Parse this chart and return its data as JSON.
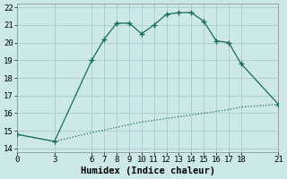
{
  "xlabel": "Humidex (Indice chaleur)",
  "bg_color": "#cce8e8",
  "line_color": "#1a6b5a",
  "upper_x": [
    0,
    3,
    6,
    7,
    8,
    9,
    10,
    11,
    12,
    13,
    14,
    15,
    16,
    17,
    18,
    21
  ],
  "upper_y": [
    14.8,
    14.4,
    19.0,
    20.2,
    21.1,
    21.1,
    20.5,
    21.0,
    21.6,
    21.7,
    21.7,
    21.2,
    20.1,
    20.0,
    18.8,
    16.5
  ],
  "lower_x": [
    0,
    3,
    6,
    7,
    8,
    9,
    10,
    11,
    12,
    13,
    14,
    15,
    16,
    17,
    18,
    21
  ],
  "lower_y": [
    14.8,
    14.4,
    14.9,
    15.05,
    15.2,
    15.35,
    15.5,
    15.6,
    15.7,
    15.8,
    15.9,
    16.0,
    16.1,
    16.2,
    16.35,
    16.5
  ],
  "xlim": [
    0,
    21
  ],
  "ylim": [
    13.8,
    22.2
  ],
  "xticks": [
    0,
    3,
    6,
    7,
    8,
    9,
    10,
    11,
    12,
    13,
    14,
    15,
    16,
    17,
    18,
    21
  ],
  "yticks": [
    14,
    15,
    16,
    17,
    18,
    19,
    20,
    21,
    22
  ],
  "tick_fontsize": 6.5,
  "xlabel_fontsize": 7.5
}
